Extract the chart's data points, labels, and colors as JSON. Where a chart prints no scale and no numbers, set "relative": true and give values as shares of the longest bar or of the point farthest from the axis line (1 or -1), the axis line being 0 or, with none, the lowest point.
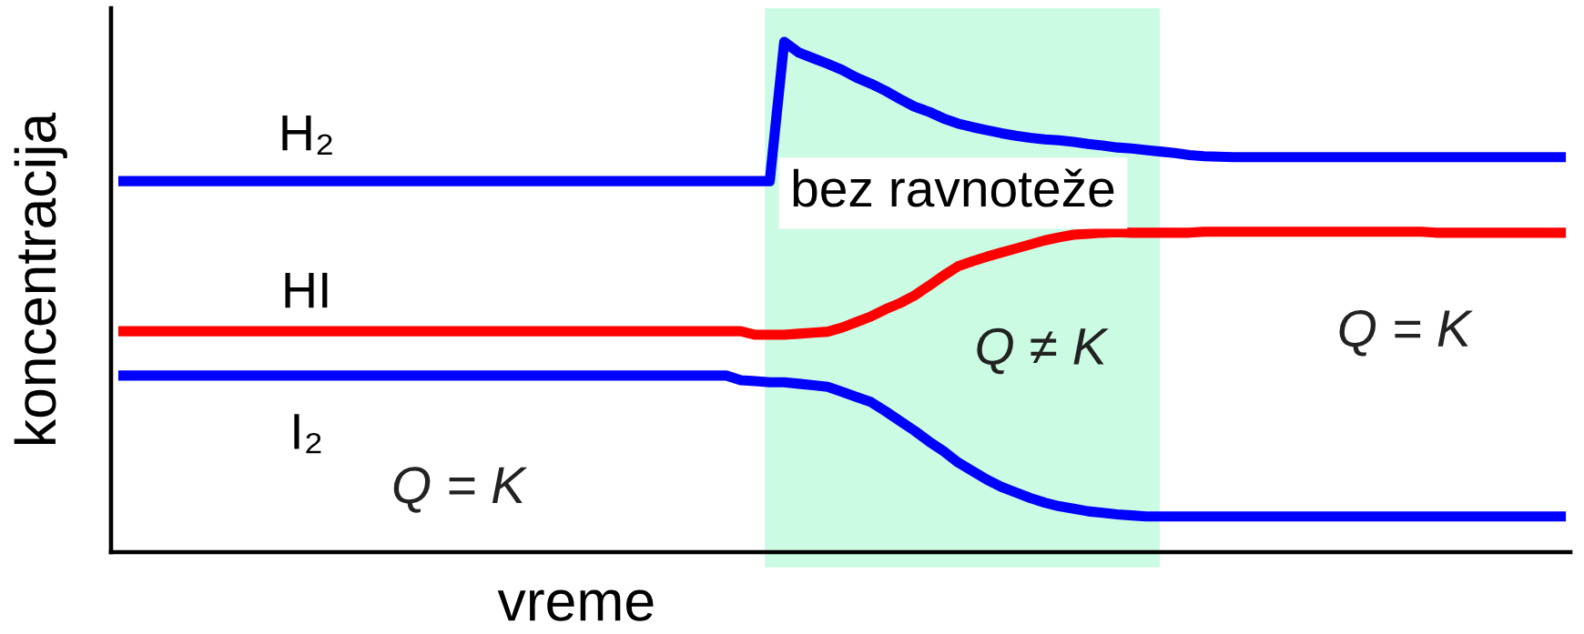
{
  "chart_data": {
    "type": "line",
    "relative": true,
    "xlabel": "vreme",
    "ylabel": "koncentracija",
    "categories": [
      null,
      null,
      null,
      null,
      null,
      null,
      null,
      null,
      null,
      null,
      null,
      null,
      null,
      null,
      null,
      null,
      null,
      null,
      null,
      null,
      null,
      null,
      null,
      null,
      null,
      null,
      null,
      null,
      null,
      null,
      null,
      null,
      null,
      null,
      null,
      null,
      null,
      null,
      null,
      null,
      null,
      null,
      null,
      null,
      null,
      null,
      null,
      null,
      null,
      null,
      null,
      null,
      null,
      null,
      null,
      null,
      null,
      null,
      null,
      null,
      null,
      null,
      null,
      null,
      null,
      null,
      null,
      null,
      null,
      null,
      null,
      null,
      null,
      null,
      null,
      null,
      null,
      null,
      null,
      null,
      null,
      null,
      null,
      null,
      null,
      null,
      null,
      null,
      null,
      null,
      null,
      null,
      null,
      null,
      null,
      null,
      null,
      null,
      null,
      null,
      null
    ],
    "series": [
      {
        "name": "H₂",
        "color": "#0000ff",
        "values": [
          0.727,
          0.727,
          0.727,
          0.727,
          0.727,
          0.727,
          0.727,
          0.727,
          0.727,
          0.727,
          0.727,
          0.727,
          0.727,
          0.727,
          0.727,
          0.727,
          0.727,
          0.727,
          0.727,
          0.727,
          0.727,
          0.727,
          0.727,
          0.727,
          0.727,
          0.727,
          0.727,
          0.727,
          0.727,
          0.727,
          0.727,
          0.727,
          0.727,
          0.727,
          0.727,
          0.727,
          0.727,
          0.727,
          0.727,
          0.727,
          0.727,
          0.727,
          0.727,
          0.727,
          0.727,
          0.727,
          1,
          0.979,
          0.968,
          0.957,
          0.945,
          0.93,
          0.918,
          0.904,
          0.888,
          0.873,
          0.863,
          0.85,
          0.84,
          0.833,
          0.827,
          0.821,
          0.816,
          0.812,
          0.809,
          0.807,
          0.804,
          0.8,
          0.797,
          0.793,
          0.791,
          0.788,
          0.785,
          0.782,
          0.778,
          0.776,
          0.775,
          0.774,
          0.774,
          0.774,
          0.774,
          0.774,
          0.774,
          0.774,
          0.774,
          0.774,
          0.774,
          0.774,
          0.774,
          0.774,
          0.774,
          0.774,
          0.774,
          0.774,
          0.774,
          0.774,
          0.774,
          0.774,
          0.774,
          0.774,
          0.774
        ]
      },
      {
        "name": "HI",
        "color": "#ff0000",
        "values": [
          0.433,
          0.433,
          0.433,
          0.433,
          0.433,
          0.433,
          0.433,
          0.433,
          0.433,
          0.433,
          0.433,
          0.433,
          0.433,
          0.433,
          0.433,
          0.433,
          0.433,
          0.433,
          0.433,
          0.433,
          0.433,
          0.433,
          0.433,
          0.433,
          0.433,
          0.433,
          0.433,
          0.433,
          0.433,
          0.433,
          0.433,
          0.433,
          0.433,
          0.433,
          0.433,
          0.433,
          0.433,
          0.433,
          0.433,
          0.433,
          0.433,
          0.433,
          0.433,
          0.433,
          0.426,
          0.426,
          0.426,
          0.428,
          0.43,
          0.432,
          0.44,
          0.451,
          0.462,
          0.476,
          0.488,
          0.503,
          0.522,
          0.542,
          0.56,
          0.57,
          0.579,
          0.587,
          0.595,
          0.603,
          0.611,
          0.617,
          0.622,
          0.624,
          0.626,
          0.627,
          0.626,
          0.626,
          0.626,
          0.626,
          0.626,
          0.628,
          0.628,
          0.628,
          0.628,
          0.628,
          0.628,
          0.628,
          0.628,
          0.628,
          0.628,
          0.628,
          0.628,
          0.628,
          0.628,
          0.628,
          0.628,
          0.626,
          0.626,
          0.626,
          0.626,
          0.626,
          0.626,
          0.626,
          0.626,
          0.626,
          0.626
        ]
      },
      {
        "name": "I₂",
        "color": "#0000ff",
        "values": [
          0.346,
          0.346,
          0.346,
          0.346,
          0.346,
          0.346,
          0.346,
          0.346,
          0.346,
          0.346,
          0.346,
          0.346,
          0.346,
          0.346,
          0.346,
          0.346,
          0.346,
          0.346,
          0.346,
          0.346,
          0.346,
          0.346,
          0.346,
          0.346,
          0.346,
          0.346,
          0.346,
          0.346,
          0.346,
          0.346,
          0.346,
          0.346,
          0.346,
          0.346,
          0.346,
          0.346,
          0.346,
          0.346,
          0.346,
          0.346,
          0.346,
          0.346,
          0.346,
          0.337,
          0.335,
          0.333,
          0.333,
          0.33,
          0.327,
          0.324,
          0.314,
          0.304,
          0.294,
          0.276,
          0.257,
          0.238,
          0.217,
          0.198,
          0.176,
          0.159,
          0.142,
          0.128,
          0.117,
          0.106,
          0.097,
          0.09,
          0.085,
          0.08,
          0.077,
          0.074,
          0.072,
          0.07,
          0.07,
          0.07,
          0.07,
          0.07,
          0.07,
          0.07,
          0.07,
          0.07,
          0.07,
          0.07,
          0.07,
          0.07,
          0.07,
          0.07,
          0.07,
          0.07,
          0.07,
          0.07,
          0.07,
          0.07,
          0.07,
          0.07,
          0.07,
          0.07,
          0.07,
          0.07,
          0.07,
          0.07,
          0.07
        ]
      }
    ],
    "annotations": [
      "Q = K",
      "bez ravnoteže",
      "Q ≠ K",
      "Q = K"
    ]
  }
}
